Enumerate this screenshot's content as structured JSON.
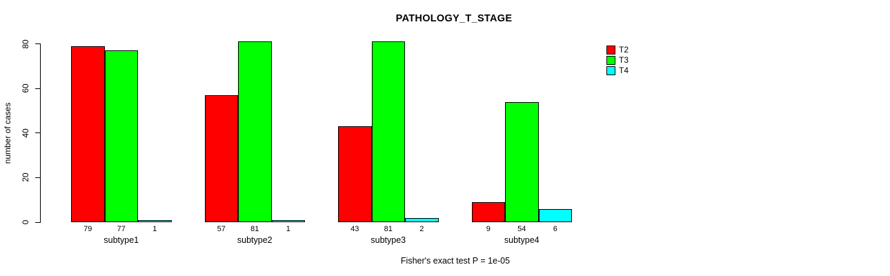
{
  "chart_data": {
    "type": "bar",
    "title": "PATHOLOGY_T_STAGE",
    "ylabel": "number of cases",
    "xlabel": "",
    "categories": [
      "subtype1",
      "subtype2",
      "subtype3",
      "subtype4"
    ],
    "series": [
      {
        "name": "T2",
        "color": "#ff0000",
        "values": [
          79,
          57,
          43,
          9
        ]
      },
      {
        "name": "T3",
        "color": "#00ff00",
        "values": [
          77,
          81,
          81,
          54
        ]
      },
      {
        "name": "T4",
        "color": "#00ffff",
        "values": [
          1,
          1,
          2,
          6
        ]
      }
    ],
    "ylim": [
      0,
      80
    ],
    "yticks": [
      0,
      20,
      40,
      60,
      80
    ],
    "grid": false,
    "legend_position": "right",
    "bar_border_color": "#000000",
    "bar_value_labels": true,
    "annotation": "Fisher's exact test P = 1e-05"
  }
}
